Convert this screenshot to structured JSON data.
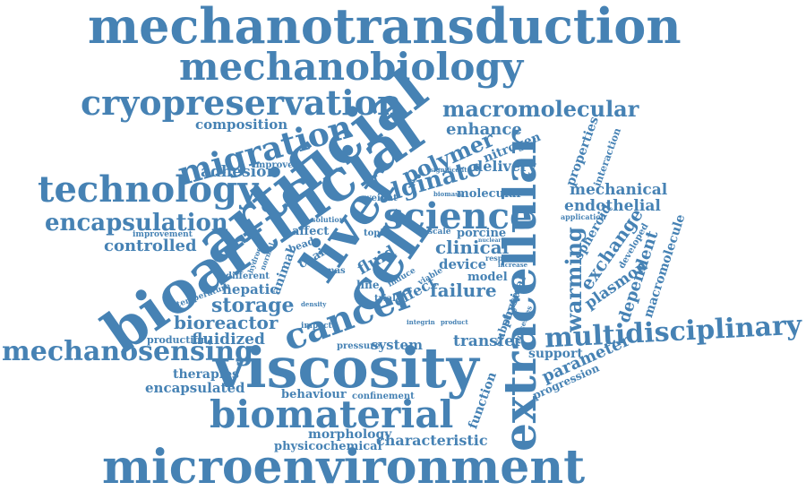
{
  "color": "#4682b4",
  "words": [
    "mechanotransduction",
    "mechanobiology",
    "cryopreservation",
    "macromolecular",
    "composition",
    "enhance",
    "migration",
    "artificial",
    "polymer",
    "nitrogen",
    "properties",
    "interaction",
    "adhesion",
    "improved",
    "delivery",
    "significant",
    "technology",
    "alginate",
    "weight",
    "biomass",
    "molecular",
    "mechanical",
    "endothelial",
    "encapsulation",
    "liver",
    "cell",
    "science",
    "extracellular",
    "application",
    "affect",
    "solution",
    "topic",
    "scale",
    "porcine",
    "clinical",
    "spheroid",
    "exchange",
    "developed",
    "controlled",
    "bioartificial",
    "chain",
    "fluid",
    "device",
    "response",
    "nuclear",
    "increase",
    "warming",
    "dependent",
    "macromolecule",
    "improvement",
    "animal",
    "mas",
    "bead",
    "different",
    "hydrogel",
    "normal",
    "model",
    "plasmon",
    "induce",
    "viable",
    "failure",
    "temperature",
    "hepatic",
    "line",
    "effect",
    "physical",
    "storage",
    "trial",
    "density",
    "impact",
    "cancer",
    "substrate",
    "processes",
    "bioreactor",
    "integrin",
    "product",
    "fluidized",
    "multidisciplinary",
    "production",
    "pressure",
    "system",
    "transfer",
    "mechanosensing",
    "support",
    "parameter",
    "viscosity",
    "therapies",
    "function",
    "progression",
    "encapsulated",
    "behaviour",
    "confinement",
    "biomaterial",
    "morphology",
    "characteristic",
    "physicochemical",
    "microenvironment"
  ]
}
